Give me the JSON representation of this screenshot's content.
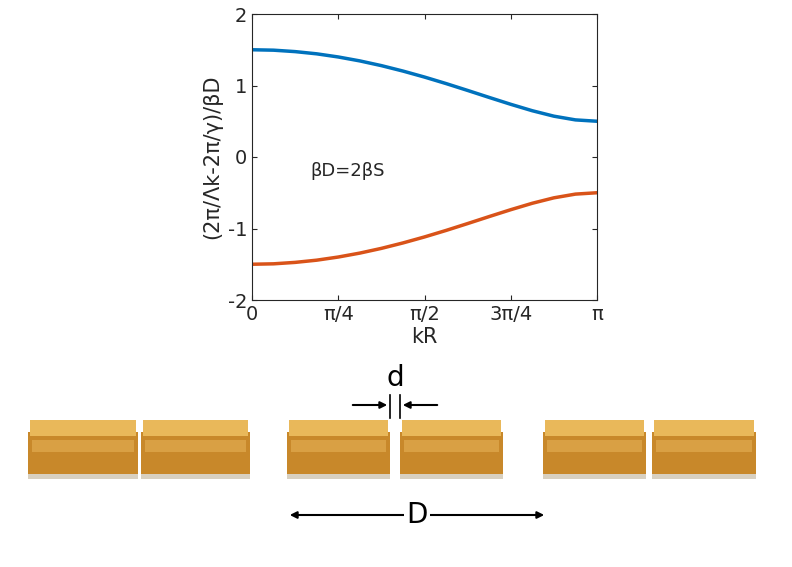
{
  "chart_data": {
    "type": "line",
    "x_label": "kR",
    "y_label": "(2π/Λk-2π/γ)/βD",
    "annotation": "βD=2βS",
    "xlim": [
      0,
      3.14159
    ],
    "xticks": [
      {
        "value": 0,
        "label": "0"
      },
      {
        "value": 0.7854,
        "label": "π/4"
      },
      {
        "value": 1.5708,
        "label": "π/2"
      },
      {
        "value": 2.35619,
        "label": "3π/4"
      },
      {
        "value": 3.14159,
        "label": "π"
      }
    ],
    "ylim": [
      -2,
      2
    ],
    "yticks": [
      -2,
      -1,
      0,
      1,
      2
    ],
    "x": [
      0,
      0.19635,
      0.3927,
      0.58905,
      0.7854,
      0.98175,
      1.1781,
      1.37445,
      1.5708,
      1.76715,
      1.9635,
      2.15985,
      2.3562,
      2.55254,
      2.74889,
      2.94524,
      3.14159
    ],
    "series": [
      {
        "color": "#0072BD",
        "values": [
          1.5,
          1.494,
          1.474,
          1.443,
          1.399,
          1.344,
          1.278,
          1.202,
          1.118,
          1.027,
          0.931,
          0.833,
          0.737,
          0.647,
          0.571,
          0.519,
          0.5
        ]
      },
      {
        "color": "#D95319",
        "values": [
          -1.5,
          -1.494,
          -1.474,
          -1.443,
          -1.399,
          -1.344,
          -1.278,
          -1.202,
          -1.118,
          -1.027,
          -0.931,
          -0.833,
          -0.737,
          -0.647,
          -0.571,
          -0.519,
          -0.5
        ]
      }
    ]
  },
  "diagram": {
    "gap_label": "d",
    "period_label": "D"
  }
}
